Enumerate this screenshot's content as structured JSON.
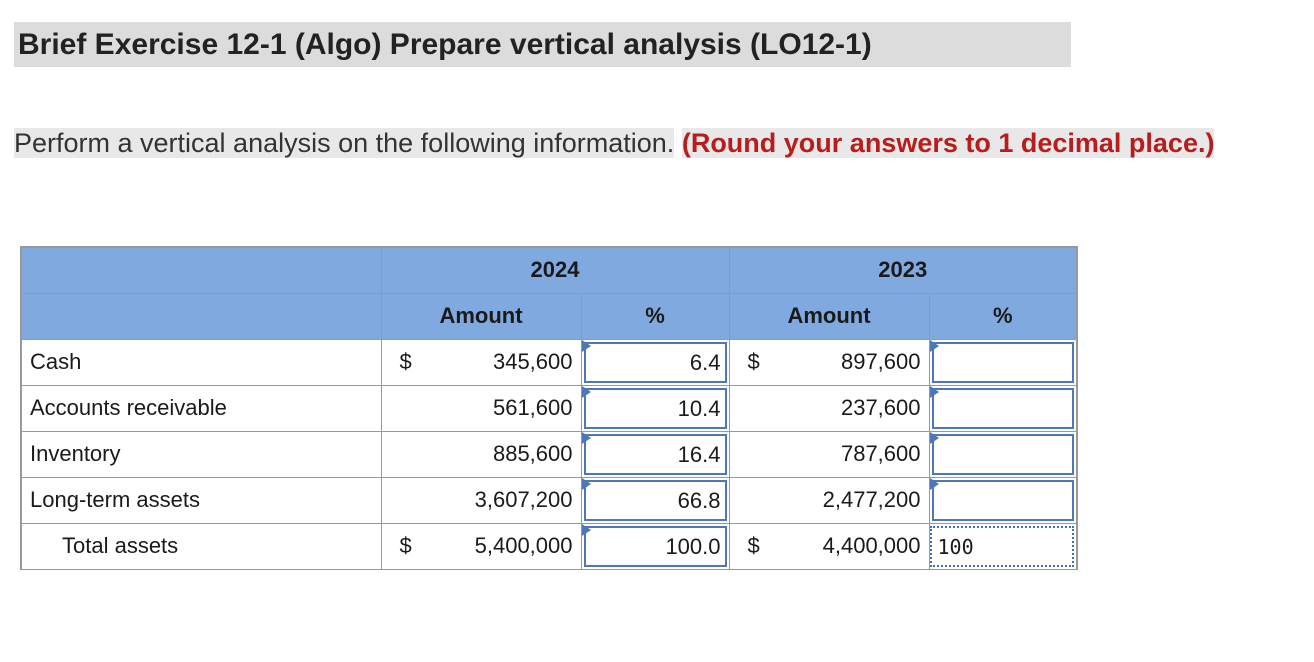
{
  "title": "Brief Exercise 12-1 (Algo) Prepare vertical analysis (LO12-1)",
  "instruction": {
    "text": "Perform a vertical analysis on the following information.",
    "emphasis": "(Round your answers to 1 decimal place.)"
  },
  "table": {
    "year1": "2024",
    "year2": "2023",
    "col_amount": "Amount",
    "col_pct": "%",
    "currency": "$",
    "rows": [
      {
        "label": "Cash",
        "amt1": "345,600",
        "pct1": "6.4",
        "amt2": "897,600",
        "pct2": ""
      },
      {
        "label": "Accounts receivable",
        "amt1": "561,600",
        "pct1": "10.4",
        "amt2": "237,600",
        "pct2": ""
      },
      {
        "label": "Inventory",
        "amt1": "885,600",
        "pct1": "16.4",
        "amt2": "787,600",
        "pct2": ""
      },
      {
        "label": "Long-term assets",
        "amt1": "3,607,200",
        "pct1": "66.8",
        "amt2": "2,477,200",
        "pct2": ""
      }
    ],
    "total": {
      "label": "Total assets",
      "amt1": "5,400,000",
      "pct1": "100.0",
      "amt2": "4,400,000",
      "pct2": "100"
    }
  },
  "colors": {
    "header_bg": "#80a9df",
    "input_border": "#4d77b8",
    "emphasis": "#b81c1c"
  }
}
